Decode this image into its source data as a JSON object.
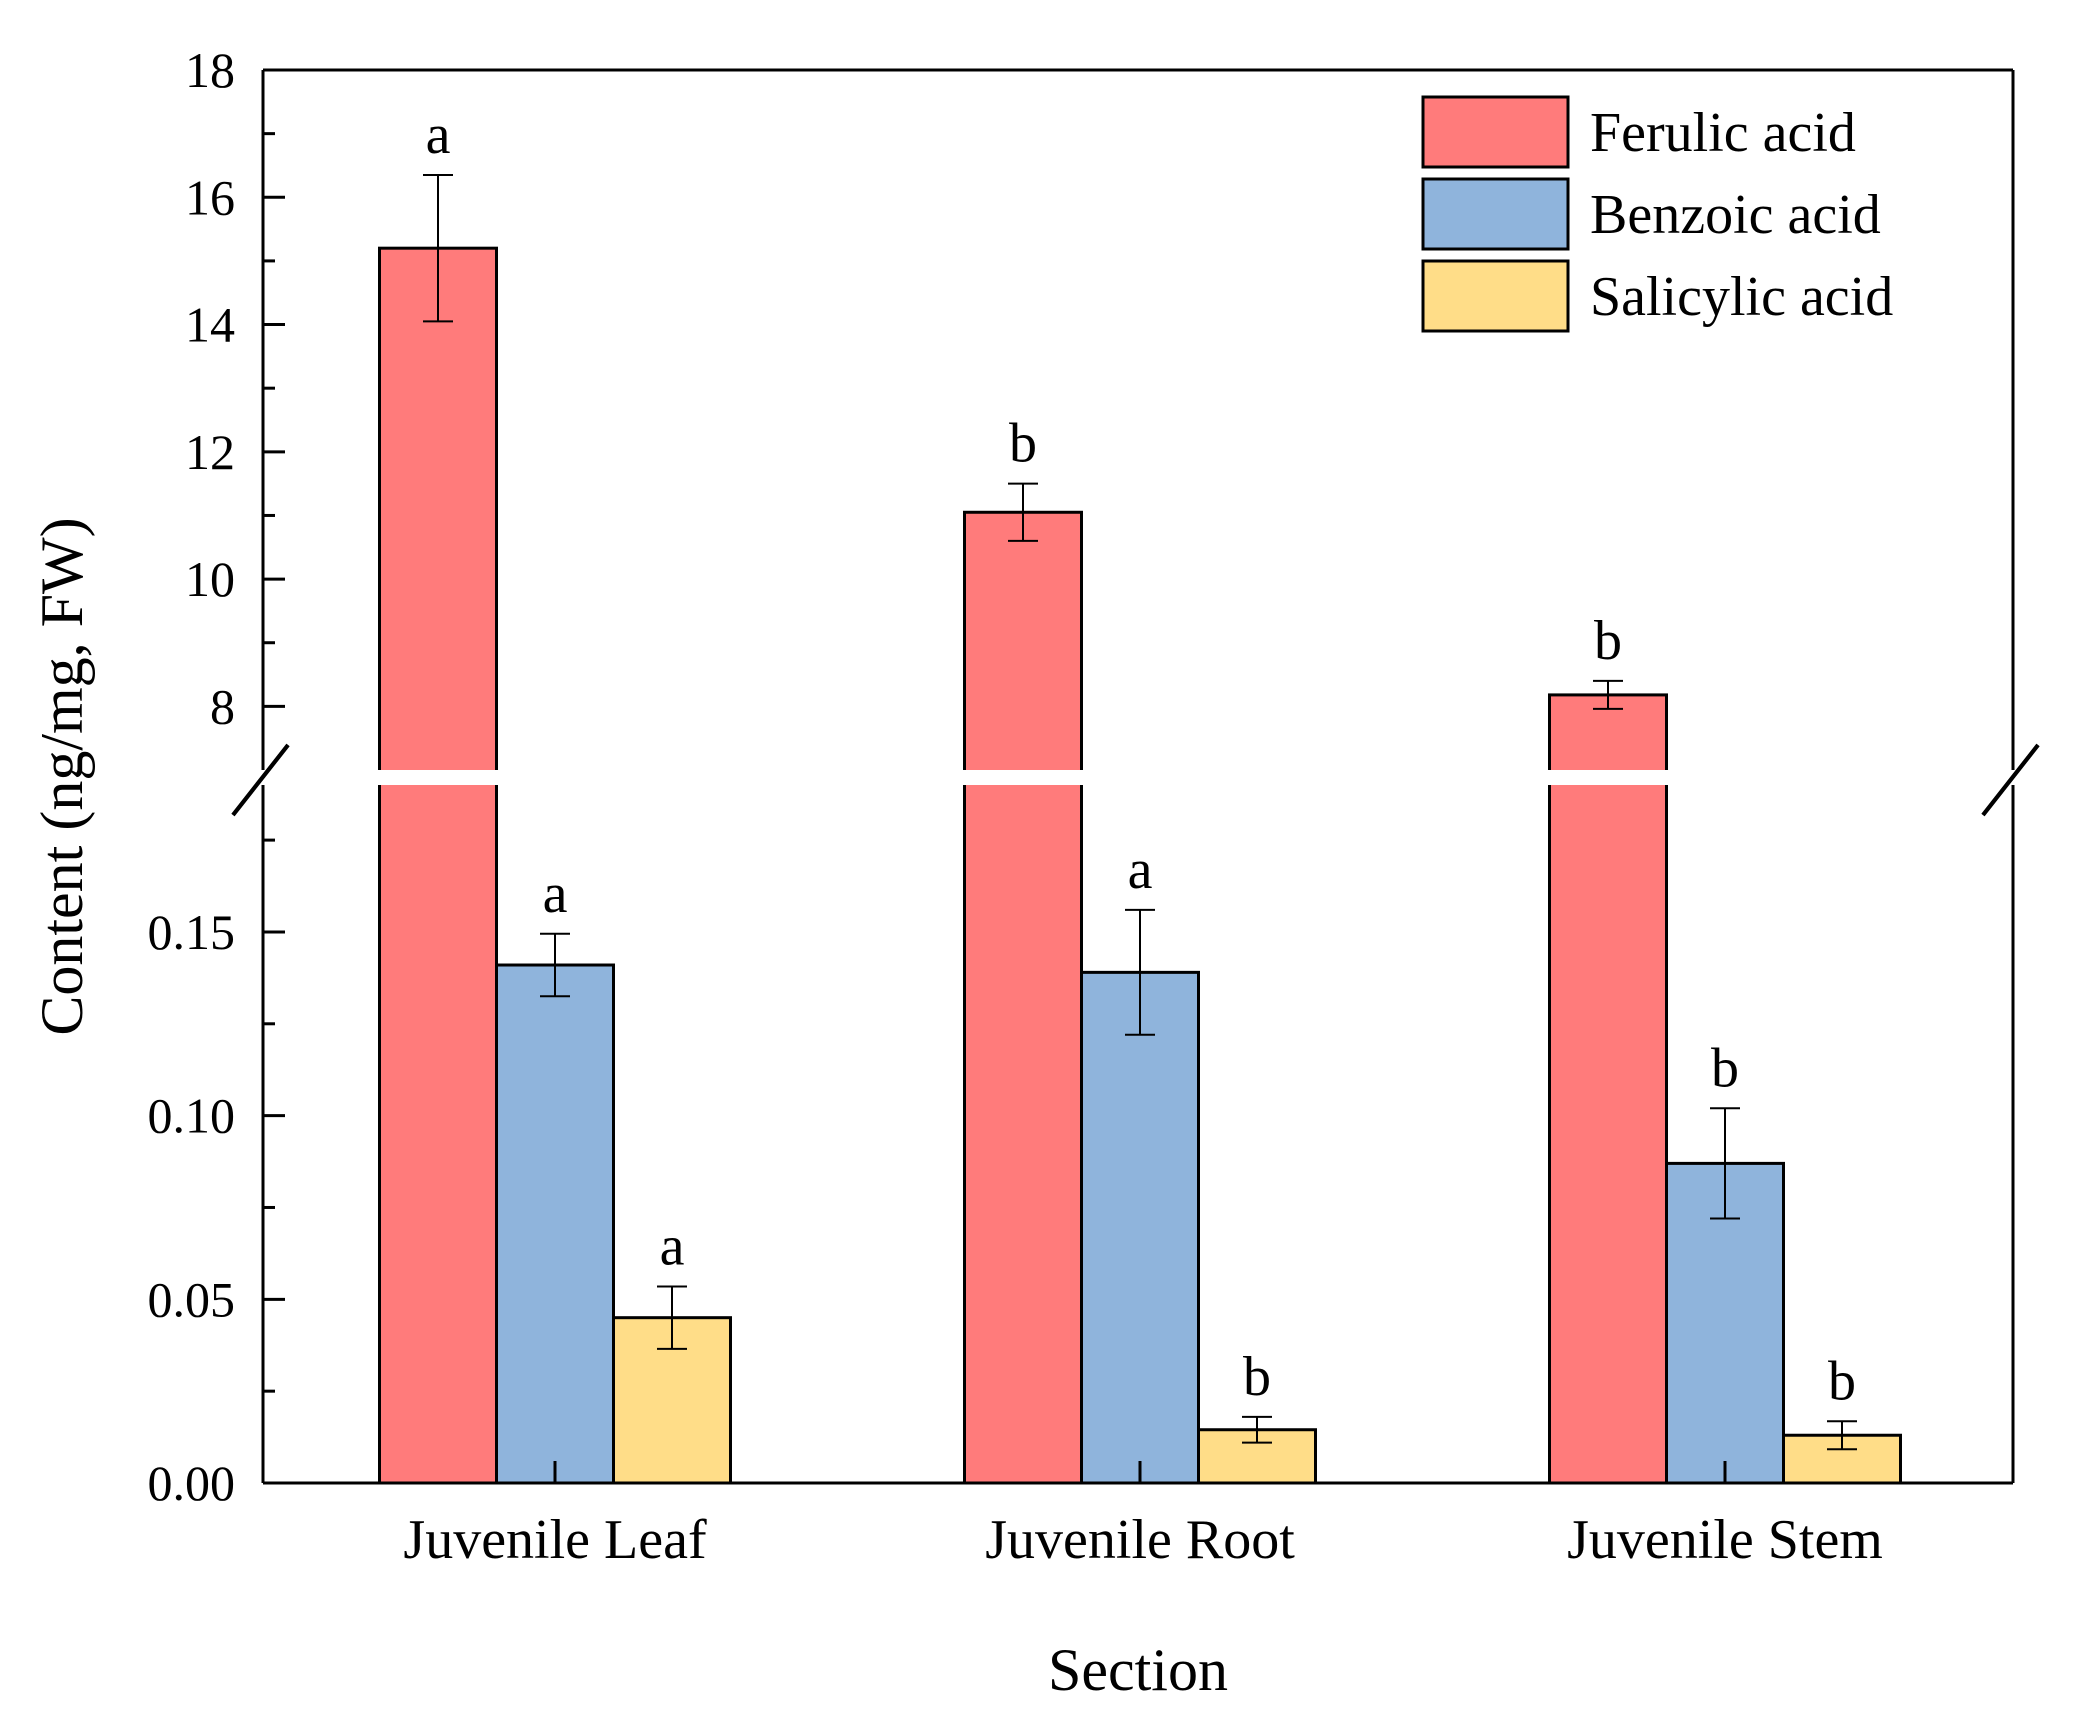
{
  "chart_data": {
    "type": "bar",
    "broken_axis": true,
    "xlabel": "Section",
    "ylabel": "Content (ng/mg, FW)",
    "categories": [
      "Juvenile Leaf",
      "Juvenile Root",
      "Juvenile Stem"
    ],
    "upper_axis": {
      "ylim": [
        7,
        18
      ],
      "ticks": [
        "8",
        "10",
        "12",
        "14",
        "16",
        "18"
      ]
    },
    "lower_axis": {
      "ylim": [
        0,
        0.19
      ],
      "ticks": [
        "0.00",
        "0.05",
        "0.10",
        "0.15"
      ]
    },
    "legend_position": "top-right",
    "series": [
      {
        "name": "Ferulic acid",
        "color": "#ff7b7b",
        "axis": "upper",
        "values": [
          15.2,
          11.05,
          8.18
        ],
        "errors": [
          1.15,
          0.45,
          0.22
        ],
        "letters": [
          "a",
          "b",
          "b"
        ]
      },
      {
        "name": "Benzoic acid",
        "color": "#8fb4dc",
        "axis": "lower",
        "values": [
          0.141,
          0.139,
          0.087
        ],
        "errors": [
          0.0085,
          0.017,
          0.015
        ],
        "letters": [
          "a",
          "a",
          "b"
        ]
      },
      {
        "name": "Salicylic acid",
        "color": "#ffdd88",
        "axis": "lower",
        "values": [
          0.045,
          0.0145,
          0.013
        ],
        "errors": [
          0.0085,
          0.0035,
          0.0038
        ],
        "letters": [
          "a",
          "b",
          "b"
        ]
      }
    ]
  }
}
